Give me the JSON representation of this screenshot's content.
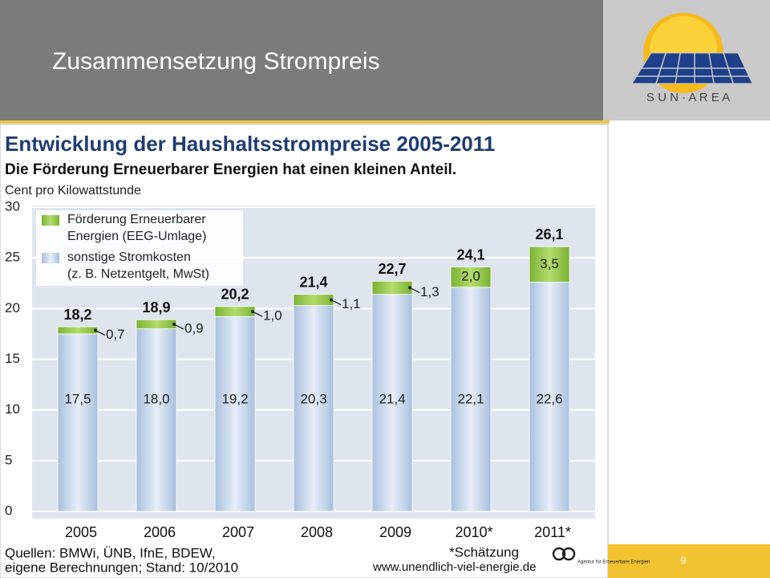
{
  "slide": {
    "title": "Zusammensetzung Strompreis",
    "logo": "S U N · A R E A",
    "page": "9"
  },
  "chart_data": {
    "type": "stacked-bar",
    "title": "Entwicklung der Haushaltsstrompreise 2005-2011",
    "subtitle": "Die Förderung Erneuerbarer Energien hat einen kleinen Anteil.",
    "y_label": "Cent pro Kilowattstunde",
    "categories": [
      "2005",
      "2006",
      "2007",
      "2008",
      "2009",
      "2010*",
      "2011*"
    ],
    "series": [
      {
        "name": "sonstige Stromkosten\n(z. B. Netzentgelt, MwSt)",
        "color": "#b9cde6",
        "values": [
          17.5,
          18.0,
          19.2,
          20.3,
          21.4,
          22.1,
          22.6
        ],
        "value_labels": [
          "17,5",
          "18,0",
          "19,2",
          "20,3",
          "21,4",
          "22,1",
          "22,6"
        ]
      },
      {
        "name": "Förderung Erneuerbarer\nEnergien (EEG-Umlage)",
        "color": "#8dc341",
        "values": [
          0.7,
          0.9,
          1.0,
          1.1,
          1.3,
          2.0,
          3.5
        ],
        "value_labels": [
          "0,7",
          "0,9",
          "1,0",
          "1,1",
          "1,3",
          "2,0",
          "3,5"
        ]
      }
    ],
    "totals": [
      18.2,
      18.9,
      20.2,
      21.4,
      22.7,
      24.1,
      26.1
    ],
    "total_labels": [
      "18,2",
      "18,9",
      "20,2",
      "21,4",
      "22,7",
      "24,1",
      "26,1"
    ],
    "ylim": [
      0,
      30
    ],
    "yticks": [
      0,
      5,
      10,
      15,
      20,
      25,
      30
    ],
    "grid": true,
    "legend": "top-left",
    "sources": [
      "Quellen: BMWi, ÜNB, IfnE, BDEW,",
      "eigene Berechnungen; Stand: 10/2010"
    ],
    "footnote": "*Schätzung",
    "url": "www.unendlich-viel-energie.de",
    "agency": "Agentur für Erneuerbare Energien"
  }
}
